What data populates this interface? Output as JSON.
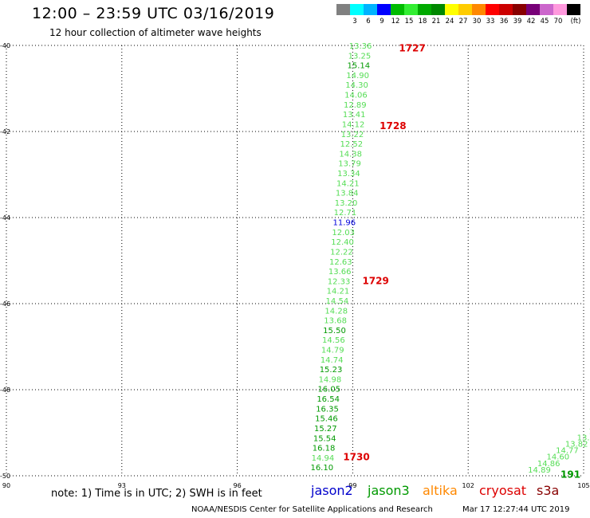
{
  "header": {
    "title": "12:00 – 23:59 UTC 03/16/2019",
    "subtitle": "12 hour collection of altimeter wave heights"
  },
  "colorbar": {
    "unit": "(ft)",
    "colors": [
      "#808080",
      "#00ffff",
      "#00b3ff",
      "#0000ff",
      "#00bb00",
      "#33ee33",
      "#00aa00",
      "#008800",
      "#ffff00",
      "#ffcc00",
      "#ff8800",
      "#ff0000",
      "#cc0000",
      "#880000",
      "#770077",
      "#cc66cc",
      "#ff99dd",
      "#000000"
    ],
    "labels": [
      "3",
      "6",
      "9",
      "12",
      "15",
      "18",
      "21",
      "24",
      "27",
      "30",
      "33",
      "36",
      "39",
      "42",
      "45",
      "70"
    ]
  },
  "chart_data": {
    "type": "scatter",
    "title": "12:00 – 23:59 UTC 03/16/2019",
    "subtitle": "12 hour collection of altimeter wave heights",
    "xlabel": "",
    "ylabel": "",
    "xlim": [
      90,
      105
    ],
    "ylim": [
      -50,
      -40
    ],
    "grid": true,
    "x_ticks": [
      "90",
      "93",
      "96",
      "99",
      "102",
      "105"
    ],
    "y_ticks": [
      "-40",
      "-42",
      "-44",
      "-46",
      "-48",
      "-50"
    ],
    "track_start": {
      "lon": 99.2,
      "lat": -40.0
    },
    "track_end": {
      "lon": 98.2,
      "lat": -49.8
    },
    "track_step_lat": -0.2,
    "points": [
      "13.36",
      "13.25",
      "15.14",
      "14.90",
      "14.30",
      "14.06",
      "12.89",
      "13.41",
      "14.12",
      "13.22",
      "12.52",
      "14.38",
      "13.79",
      "13.34",
      "14.21",
      "13.84",
      "13.20",
      "12.71",
      "11.96",
      "12.03",
      "12.40",
      "12.22",
      "12.63",
      "13.66",
      "12.33",
      "14.21",
      "14.54",
      "14.28",
      "13.68",
      "15.50",
      "14.56",
      "14.79",
      "14.74",
      "15.23",
      "14.98",
      "16.05",
      "16.54",
      "16.35",
      "15.46",
      "15.27",
      "15.54",
      "16.18",
      "14.94",
      "16.10"
    ],
    "point_colors": {
      "11.96": "#0000dd"
    },
    "default_light": "#55dd55",
    "default_dark": "#009900",
    "dark_threshold": 15,
    "time_labels": [
      {
        "text": "1727",
        "lon": 100.2,
        "lat": -40.05
      },
      {
        "text": "1728",
        "lon": 99.7,
        "lat": -41.85
      },
      {
        "text": "1729",
        "lon": 99.25,
        "lat": -45.45
      },
      {
        "text": "1730",
        "lon": 98.75,
        "lat": -49.55
      },
      {
        "text": "191",
        "lon": 104.4,
        "lat": -49.95
      }
    ],
    "time_label_color": "#dd0000",
    "second_track_points": [
      "13.",
      "13.8",
      "13.82",
      "14.77",
      "14.60",
      "14.86",
      "14.89"
    ]
  },
  "legend": {
    "note": "note:  1) Time is in UTC;  2) SWH is in feet",
    "satellites": [
      {
        "name": "jason2",
        "color": "#0000cc"
      },
      {
        "name": "jason3",
        "color": "#009900"
      },
      {
        "name": "altika",
        "color": "#ff8800"
      },
      {
        "name": "cryosat",
        "color": "#dd0000"
      },
      {
        "name": "s3a",
        "color": "#880000"
      }
    ]
  },
  "footer": {
    "credit": "NOAA/NESDIS Center for Satellite Applications and Research",
    "timestamp": "Mar 17 12:27:44 UTC 2019"
  }
}
